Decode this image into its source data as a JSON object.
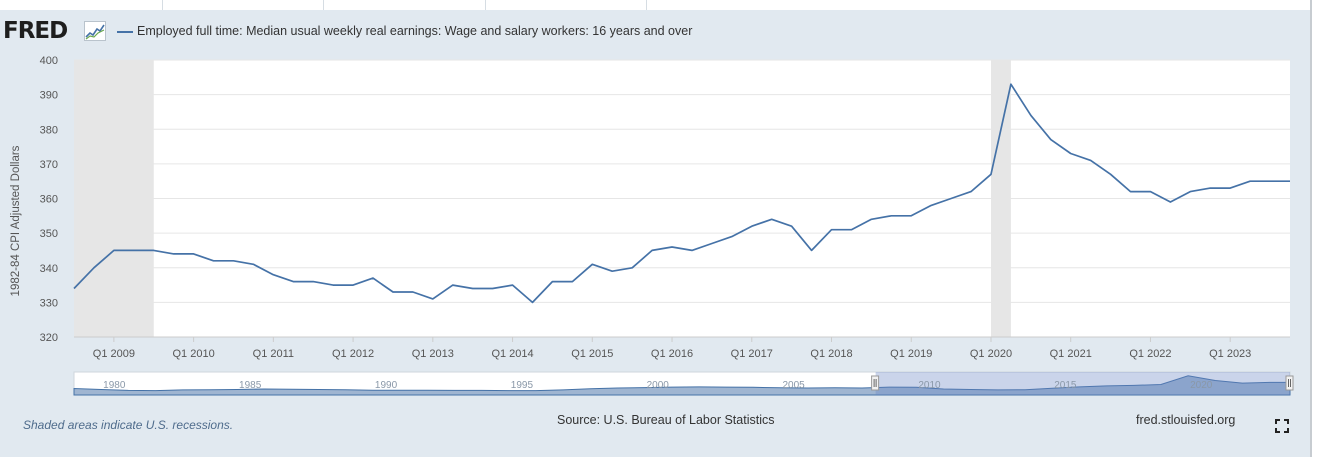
{
  "header": {
    "logo_text": "FRED",
    "logo_icon": "trend-graph-icon",
    "legend_label": "Employed full time: Median usual weekly real earnings: Wage and salary workers: 16 years and over"
  },
  "footer": {
    "recession_note": "Shaded areas indicate U.S. recessions.",
    "source": "Source: U.S. Bureau of Labor Statistics",
    "site": "fred.stlouisfed.org",
    "fullscreen_icon": "fullscreen-icon"
  },
  "colors": {
    "series": "#4572a7",
    "recession": "#e6e6e6",
    "background": "#e1e9f0",
    "navigator_fill": "#9fb5d1",
    "navigator_selection": "#a8bcdb"
  },
  "chart_data": {
    "type": "line",
    "title": "Employed full time: Median usual weekly real earnings: Wage and salary workers: 16 years and over",
    "ylabel": "1982-84 CPI Adjusted Dollars",
    "xlabel": "",
    "ylim": [
      320,
      400
    ],
    "yticks": [
      320,
      330,
      340,
      350,
      360,
      370,
      380,
      390,
      400
    ],
    "xlim": [
      2008.5,
      2023.75
    ],
    "xticks": [
      {
        "label": "Q1 2009",
        "x": 2009.0
      },
      {
        "label": "Q1 2010",
        "x": 2010.0
      },
      {
        "label": "Q1 2011",
        "x": 2011.0
      },
      {
        "label": "Q1 2012",
        "x": 2012.0
      },
      {
        "label": "Q1 2013",
        "x": 2013.0
      },
      {
        "label": "Q1 2014",
        "x": 2014.0
      },
      {
        "label": "Q1 2015",
        "x": 2015.0
      },
      {
        "label": "Q1 2016",
        "x": 2016.0
      },
      {
        "label": "Q1 2017",
        "x": 2017.0
      },
      {
        "label": "Q1 2018",
        "x": 2018.0
      },
      {
        "label": "Q1 2019",
        "x": 2019.0
      },
      {
        "label": "Q1 2020",
        "x": 2020.0
      },
      {
        "label": "Q1 2021",
        "x": 2021.0
      },
      {
        "label": "Q1 2022",
        "x": 2022.0
      },
      {
        "label": "Q1 2023",
        "x": 2023.0
      }
    ],
    "grid": true,
    "recessions": [
      [
        2008.5,
        2009.5
      ],
      [
        2020.0,
        2020.25
      ]
    ],
    "series": [
      {
        "name": "Employed full time: Median usual weekly real earnings: Wage and salary workers: 16 years and over",
        "x": [
          2008.5,
          2008.75,
          2009.0,
          2009.25,
          2009.5,
          2009.75,
          2010.0,
          2010.25,
          2010.5,
          2010.75,
          2011.0,
          2011.25,
          2011.5,
          2011.75,
          2012.0,
          2012.25,
          2012.5,
          2012.75,
          2013.0,
          2013.25,
          2013.5,
          2013.75,
          2014.0,
          2014.25,
          2014.5,
          2014.75,
          2015.0,
          2015.25,
          2015.5,
          2015.75,
          2016.0,
          2016.25,
          2016.5,
          2016.75,
          2017.0,
          2017.25,
          2017.5,
          2017.75,
          2018.0,
          2018.25,
          2018.5,
          2018.75,
          2019.0,
          2019.25,
          2019.5,
          2019.75,
          2020.0,
          2020.25,
          2020.5,
          2020.75,
          2021.0,
          2021.25,
          2021.5,
          2021.75,
          2022.0,
          2022.25,
          2022.5,
          2022.75,
          2023.0,
          2023.25,
          2023.5,
          2023.75
        ],
        "values": [
          334,
          340,
          345,
          345,
          345,
          344,
          344,
          342,
          342,
          341,
          338,
          336,
          336,
          335,
          335,
          337,
          333,
          333,
          331,
          335,
          334,
          334,
          335,
          330,
          336,
          336,
          341,
          339,
          340,
          345,
          346,
          345,
          347,
          349,
          352,
          354,
          352,
          345,
          351,
          351,
          354,
          355,
          355,
          358,
          360,
          362,
          367,
          393,
          384,
          377,
          373,
          371,
          367,
          362,
          362,
          359,
          362,
          363,
          363,
          365,
          365,
          365
        ]
      }
    ],
    "navigator": {
      "tick_labels": [
        "1980",
        "1985",
        "1990",
        "1995",
        "2000",
        "2005",
        "2010",
        "2015",
        "2020"
      ]
    }
  }
}
